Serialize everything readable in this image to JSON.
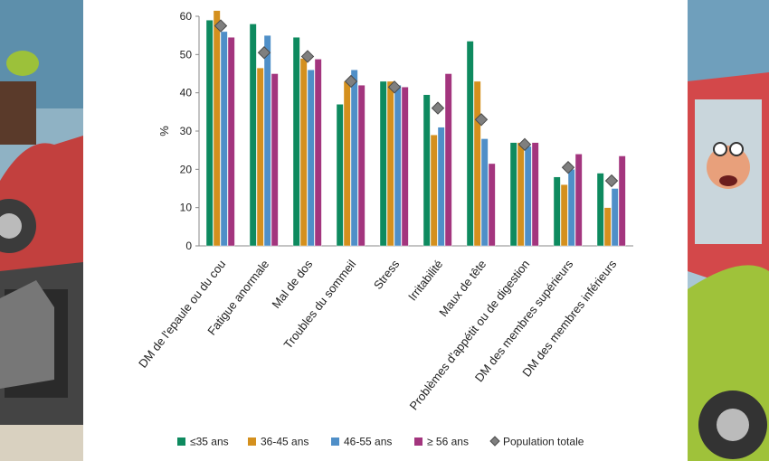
{
  "chart_data": {
    "type": "bar",
    "ylabel": "%",
    "ylim": [
      0,
      60
    ],
    "yticks": [
      0,
      10,
      20,
      30,
      40,
      50,
      60
    ],
    "grid": false,
    "legend_position": "bottom",
    "categories": [
      "DM de l'epaule ou du cou",
      "Fatigue anormale",
      "Mal de dos",
      "Troubles du sommeil",
      "Stress",
      "Irritabilité",
      "Maux de tête",
      "Problèmes d'appétit ou de digestion",
      "DM des membres supérieurs",
      "DM des membres inférieurs"
    ],
    "series": [
      {
        "name": "≤35 ans",
        "color": "#0e8a5f",
        "values": [
          59,
          58,
          54.5,
          37,
          43,
          39.5,
          53.5,
          27,
          18,
          19
        ]
      },
      {
        "name": "36-45 ans",
        "color": "#d4901e",
        "values": [
          61.5,
          46.5,
          49,
          43,
          43,
          29,
          43,
          27,
          16,
          10
        ]
      },
      {
        "name": "46-55 ans",
        "color": "#4f8fc8",
        "values": [
          56,
          55,
          46,
          46,
          42,
          31,
          28,
          26,
          20,
          15
        ]
      },
      {
        "name": "≥ 56 ans",
        "color": "#a3357e",
        "values": [
          54.5,
          45,
          48.8,
          42,
          41.5,
          45,
          21.5,
          27,
          24,
          23.5
        ]
      }
    ],
    "total": {
      "name": "Population totale",
      "color": "#7f7f7f",
      "values": [
        57.5,
        50.5,
        49.5,
        43,
        41.5,
        36,
        33,
        26.5,
        20.5,
        17
      ]
    }
  }
}
